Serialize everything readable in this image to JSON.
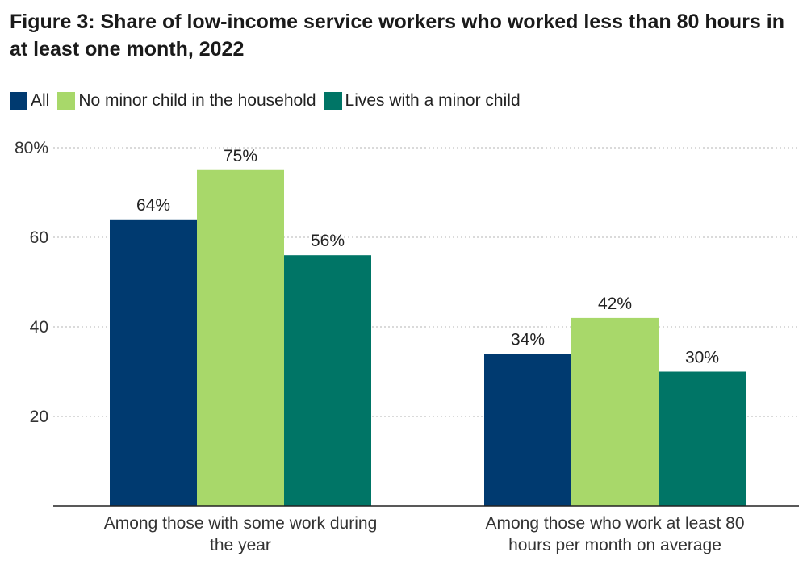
{
  "chart_data": {
    "type": "bar",
    "title": "Figure 3: Share of low-income service workers who worked less than 80 hours in at least one month, 2022",
    "categories": [
      [
        "Among those with some work during",
        "the year"
      ],
      [
        "Among those who work at least 80",
        "hours per month on average"
      ]
    ],
    "series": [
      {
        "name": "All",
        "color": "#003a70",
        "values": [
          64,
          34
        ],
        "labels": [
          "64%",
          "34%"
        ]
      },
      {
        "name": "No minor child in the household",
        "color": "#a8d86a",
        "values": [
          75,
          42
        ],
        "labels": [
          "75%",
          "42%"
        ]
      },
      {
        "name": "Lives with a minor child",
        "color": "#007566",
        "values": [
          56,
          30
        ],
        "labels": [
          "56%",
          "30%"
        ]
      }
    ],
    "ylim": [
      0,
      80
    ],
    "yticks": [
      {
        "value": 80,
        "label": "80%"
      },
      {
        "value": 60,
        "label": "60"
      },
      {
        "value": 40,
        "label": "40"
      },
      {
        "value": 20,
        "label": "20"
      }
    ],
    "grid": true,
    "legend_position": "top-left"
  }
}
